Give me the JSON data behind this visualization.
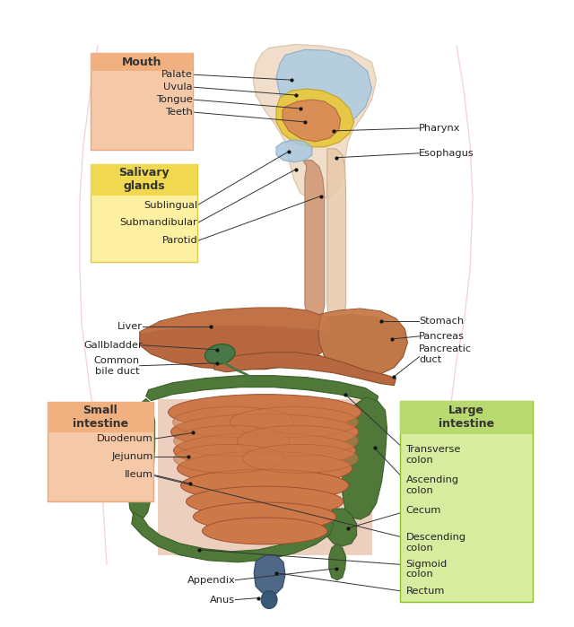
{
  "background_color": "#ffffff",
  "fig_width": 6.4,
  "fig_height": 6.99,
  "colors": {
    "mouth_box_bg": "#f5c9a8",
    "mouth_box_border": "#e8a87c",
    "mouth_box_title": "#f0b080",
    "salivary_box_bg": "#fdf0a0",
    "salivary_box_border": "#e0c840",
    "salivary_box_title": "#f0d850",
    "large_int_box_bg": "#d8eca0",
    "large_int_box_border": "#90c030",
    "large_int_box_title": "#b8d870",
    "small_int_box_bg": "#f5c9a8",
    "small_int_box_border": "#e8a87c",
    "small_int_box_title": "#f0b080",
    "liver_color": "#b86840",
    "liver_light": "#cc8050",
    "stomach_color": "#c07848",
    "stomach_light": "#d89060",
    "pancreas_color": "#b86840",
    "gallbladder_color": "#487848",
    "small_intestine_color": "#cc7848",
    "small_intestine_edge": "#a05030",
    "large_intestine_color": "#507838",
    "large_intestine_edge": "#386028",
    "esophagus_color": "#d4a080",
    "esophagus_edge": "#b08060",
    "spine_color": "#e8c8a8",
    "spine_edge": "#c0a080",
    "mouth_blue": "#b0cce0",
    "mouth_blue_edge": "#88aac8",
    "mouth_yellow": "#e8c840",
    "mouth_yellow_edge": "#c0a020",
    "mouth_orange": "#d88858",
    "mouth_orange_edge": "#b06838",
    "submand_blue": "#a8c8e0",
    "submand_blue_edge": "#80a8c8",
    "anus_color": "#506888",
    "anus_edge": "#304860",
    "appendix_color": "#507838",
    "annotation_line": "#333333",
    "text_color": "#222222",
    "skin_outline": "#e8a0a0"
  },
  "labels": {
    "mouth_box": "Mouth",
    "palate": "Palate",
    "uvula": "Uvula",
    "tongue": "Tongue",
    "teeth": "Teeth",
    "pharynx": "Pharynx",
    "esophagus": "Esophagus",
    "salivary_box": "Salivary\nglands",
    "sublingual": "Sublingual",
    "submandibular": "Submandibular",
    "parotid": "Parotid",
    "liver": "Liver",
    "gallbladder": "Gallbladder",
    "common_bile": "Common\nbile duct",
    "stomach": "Stomach",
    "pancreas": "Pancreas",
    "pancreatic_duct": "Pancreatic\nduct",
    "small_int_box": "Small\nintestine",
    "duodenum": "Duodenum",
    "jejunum": "Jejunum",
    "ileum": "Ileum",
    "large_int_box": "Large\nintestine",
    "transverse_colon": "Transverse\ncolon",
    "ascending_colon": "Ascending\ncolon",
    "cecum": "Cecum",
    "descending_colon": "Descending\ncolon",
    "sigmoid_colon": "Sigmoid\ncolon",
    "rectum": "Rectum",
    "appendix": "Appendix",
    "anus": "Anus"
  }
}
